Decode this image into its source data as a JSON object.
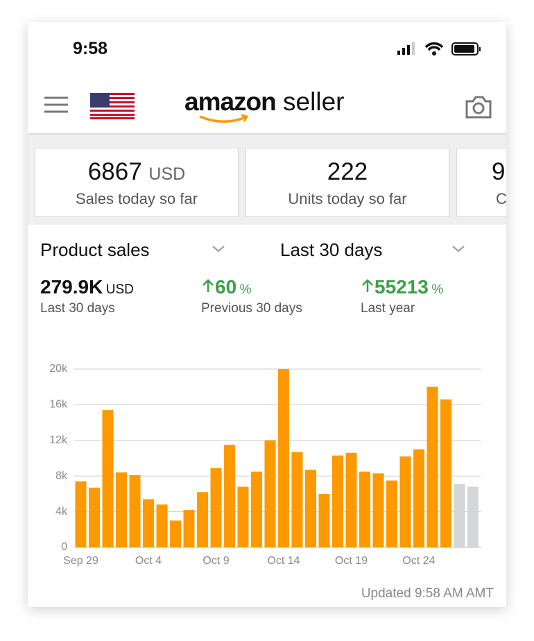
{
  "status_bar": {
    "time": "9:58"
  },
  "header": {
    "logo": "amazon",
    "logo_suffix": "seller"
  },
  "summary_cards": [
    {
      "value": "6867",
      "unit": "USD",
      "label": "Sales today so far"
    },
    {
      "value": "222",
      "label": "Units today so far"
    },
    {
      "value": "9",
      "label": "C"
    }
  ],
  "filters": {
    "metric": "Product sales",
    "period": "Last 30 days"
  },
  "stats": [
    {
      "value": "279.9K",
      "unit": "USD",
      "label": "Last 30 days"
    },
    {
      "value": "60",
      "unit": "%",
      "label": "Previous 30 days"
    },
    {
      "value": "55213",
      "unit": "%",
      "label": "Last year"
    }
  ],
  "chart_data": {
    "type": "bar",
    "categories": [
      "Sep 29",
      null,
      null,
      null,
      null,
      "Oct 4",
      null,
      null,
      null,
      null,
      "Oct 9",
      null,
      null,
      null,
      null,
      "Oct 14",
      null,
      null,
      null,
      null,
      "Oct 19",
      null,
      null,
      null,
      null,
      "Oct 24",
      null,
      null,
      null,
      null
    ],
    "values": [
      7400,
      6700,
      15400,
      8400,
      8100,
      5400,
      4800,
      3000,
      4200,
      6200,
      8900,
      11500,
      6800,
      8500,
      12000,
      20000,
      10700,
      8700,
      6000,
      10300,
      10600,
      8500,
      8300,
      7500,
      10200,
      11000,
      18000,
      16600,
      7100,
      6800
    ],
    "bar_colors": [
      "#ff9900",
      "#ff9900",
      "#ff9900",
      "#ff9900",
      "#ff9900",
      "#ff9900",
      "#ff9900",
      "#ff9900",
      "#ff9900",
      "#ff9900",
      "#ff9900",
      "#ff9900",
      "#ff9900",
      "#ff9900",
      "#ff9900",
      "#ff9900",
      "#ff9900",
      "#ff9900",
      "#ff9900",
      "#ff9900",
      "#ff9900",
      "#ff9900",
      "#ff9900",
      "#ff9900",
      "#ff9900",
      "#ff9900",
      "#ff9900",
      "#ff9900",
      "#d5d6d8",
      "#d5d6d8"
    ],
    "ylim": [
      0,
      20000
    ],
    "yticks": [
      0,
      {
        "value": 4000,
        "label": "4k"
      },
      {
        "value": 8000,
        "label": "8k"
      },
      {
        "value": 12000,
        "label": "12k"
      },
      {
        "value": 16000,
        "label": "16k"
      },
      {
        "value": 20000,
        "label": "20k"
      }
    ],
    "grid": true
  },
  "footer": {
    "updated": "Updated 9:58 AM AMT"
  }
}
